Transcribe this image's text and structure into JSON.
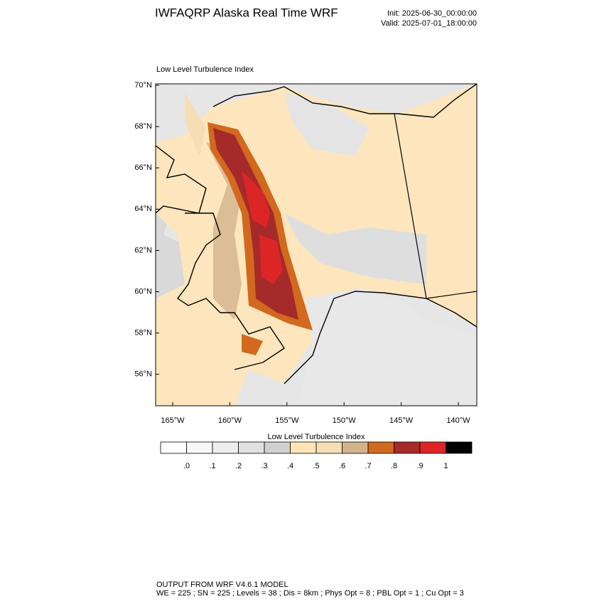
{
  "header": {
    "title": "IWFAQRP Alaska Real Time WRF",
    "init": "Init: 2025-06-30_00:00:00",
    "valid": "Valid: 2025-07-01_18:00:00"
  },
  "map": {
    "title": "Low Level Turbulence Index",
    "lat_labels": [
      "70°N",
      "68°N",
      "66°N",
      "64°N",
      "62°N",
      "60°N",
      "58°N",
      "56°N"
    ],
    "lon_labels": [
      "165°W",
      "160°W",
      "155°W",
      "150°W",
      "145°W",
      "140°W"
    ]
  },
  "colorbar": {
    "title": "Low Level Turbulence Index",
    "colors": [
      "#ffffff",
      "#f7f7f7",
      "#eeeeee",
      "#e0e0e0",
      "#d0d0d0",
      "#ffe4b5",
      "#f5deb3",
      "#d2b48c",
      "#d2691e",
      "#a52a2a",
      "#dc2626",
      "#000000"
    ],
    "labels": [
      ".0",
      ".1",
      ".2",
      ".3",
      ".4",
      ".5",
      ".6",
      ".7",
      ".8",
      ".9",
      "1"
    ]
  },
  "footer": {
    "line1": "OUTPUT FROM WRF V4.6.1 MODEL",
    "line2": "WE = 225 ; SN = 225 ; Levels = 38 ; Dis = 8km ; Phys Opt = 8 ; PBL Opt = 1 ; Cu Opt = 3"
  }
}
